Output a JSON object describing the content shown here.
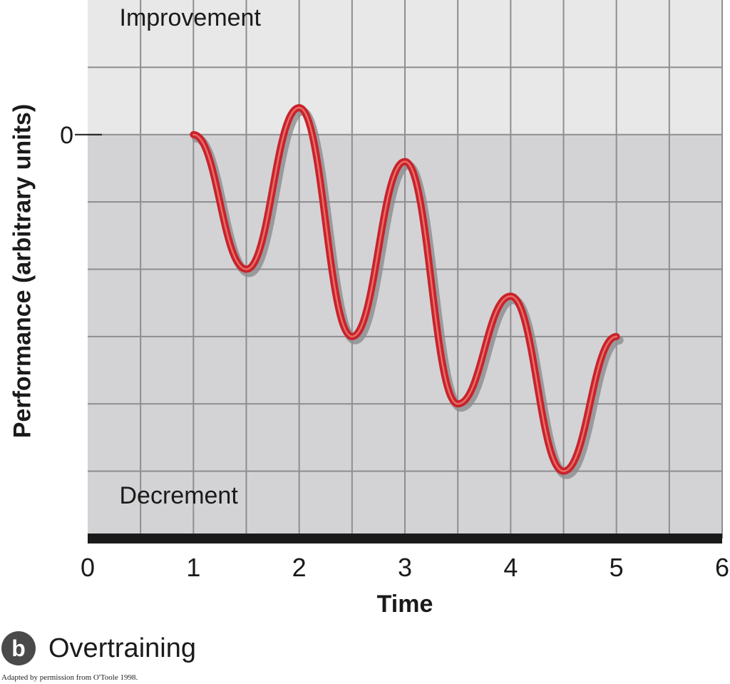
{
  "chart_data": {
    "type": "line",
    "title": "",
    "xlabel": "Time",
    "ylabel": "Performance (arbitrary units)",
    "xlim": [
      0,
      6
    ],
    "ylim": [
      -6,
      2
    ],
    "x_ticks": [
      "0",
      "1",
      "2",
      "3",
      "4",
      "5",
      "6"
    ],
    "y_ticks": [
      "0"
    ],
    "grid": true,
    "legend": "none",
    "regions": [
      {
        "label": "Improvement",
        "from": 0,
        "to": 2,
        "color": "#e8e8e9"
      },
      {
        "label": "Decrement",
        "from": -6,
        "to": 0,
        "color": "#d3d3d5"
      }
    ],
    "series": [
      {
        "color": "#c8232b",
        "x": [
          1,
          1.5,
          2,
          2.5,
          3,
          3.5,
          4,
          4.5,
          5
        ],
        "y": [
          0,
          -2,
          0.4,
          -3,
          -0.4,
          -4,
          -2.4,
          -5,
          -3
        ]
      }
    ]
  },
  "panel": {
    "letter": "b",
    "title": "Overtraining"
  },
  "credit": "Adapted by permission from O'Toole 1998."
}
